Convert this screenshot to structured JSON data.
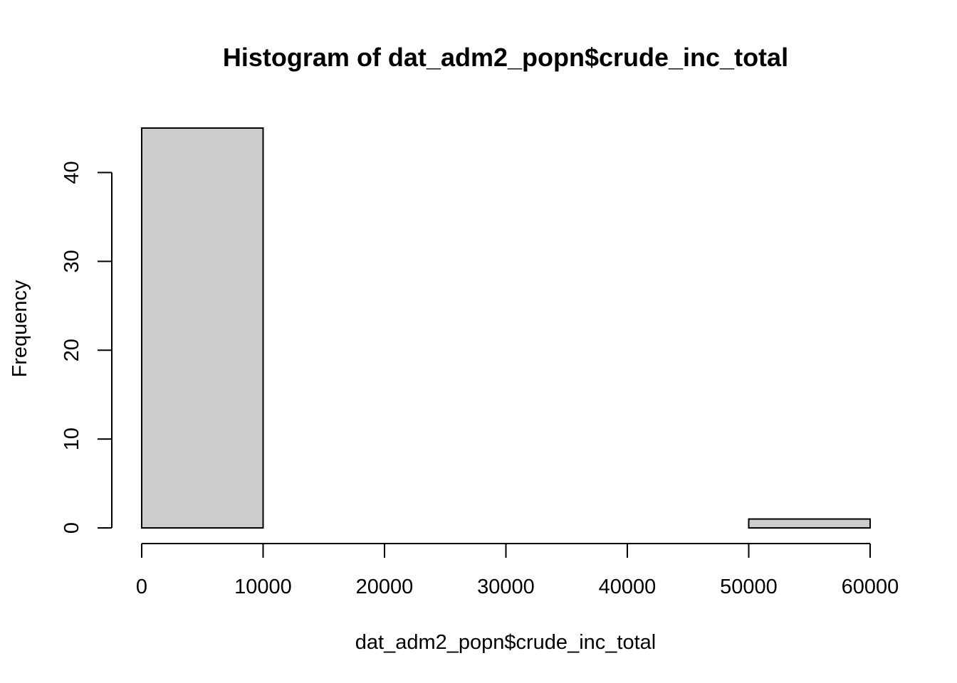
{
  "chart_data": {
    "type": "bar",
    "title": "Histogram of dat_adm2_popn$crude_inc_total",
    "xlabel": "dat_adm2_popn$crude_inc_total",
    "ylabel": "Frequency",
    "bins": [
      {
        "start": 0,
        "end": 10000,
        "count": 45
      },
      {
        "start": 10000,
        "end": 20000,
        "count": 0
      },
      {
        "start": 20000,
        "end": 30000,
        "count": 0
      },
      {
        "start": 30000,
        "end": 40000,
        "count": 0
      },
      {
        "start": 40000,
        "end": 50000,
        "count": 0
      },
      {
        "start": 50000,
        "end": 60000,
        "count": 1
      }
    ],
    "xlim": [
      0,
      60000
    ],
    "ylim": [
      0,
      45
    ],
    "x_ticks": [
      "0",
      "10000",
      "20000",
      "30000",
      "40000",
      "50000",
      "60000"
    ],
    "y_ticks": [
      "0",
      "10",
      "20",
      "30",
      "40"
    ],
    "bar_color": "#cccccc",
    "grid": false
  }
}
